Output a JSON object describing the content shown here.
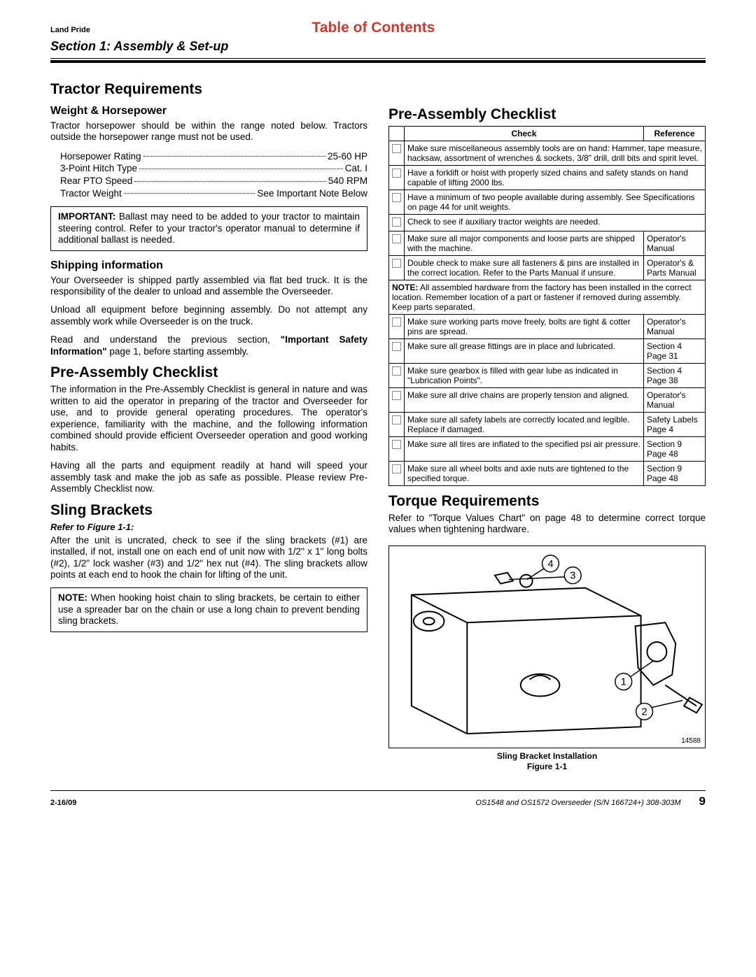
{
  "header": {
    "brand": "Land Pride",
    "toc_title": "Table of Contents",
    "section": "Section 1: Assembly & Set-up"
  },
  "left": {
    "h_tractor": "Tractor Requirements",
    "h_weight": "Weight & Horsepower",
    "p_weight": "Tractor horsepower should be within the range noted below. Tractors outside the horsepower range must not be used.",
    "specs": [
      {
        "label": "Horsepower Rating",
        "value": "25-60 HP"
      },
      {
        "label": "3-Point Hitch Type",
        "value": "Cat. I"
      },
      {
        "label": "Rear PTO Speed",
        "value": "540 RPM"
      },
      {
        "label": "Tractor Weight",
        "value": "See Important Note Below"
      }
    ],
    "important_lead": "IMPORTANT:",
    "important_body": " Ballast may need to be added to your tractor to maintain steering control. Refer to your tractor's operator manual to determine if additional ballast is needed.",
    "h_ship": "Shipping information",
    "p_ship1": "Your Overseeder is shipped partly assembled via flat bed truck. It is the responsibility of the dealer to unload and assemble the Overseeder.",
    "p_ship2": "Unload all equipment before beginning assembly. Do not attempt any assembly work while Overseeder is on the truck.",
    "p_ship3a": "Read and understand the previous section, ",
    "p_ship3b": "\"Important Safety Information\"",
    "p_ship3c": " page 1, before starting assembly.",
    "h_preasm": "Pre-Assembly Checklist",
    "p_preasm1": "The information in the Pre-Assembly Checklist is general in nature and was written to aid the operator in preparing of the tractor and Overseeder for use, and to provide general operating procedures. The operator's experience, familiarity with the machine, and the following information combined should provide efficient Overseeder operation and good working habits.",
    "p_preasm2": "Having all the parts and equipment readily at hand will speed your assembly task and make the job as safe as possible. Please review Pre-Assembly Checklist now.",
    "h_sling": "Sling Brackets",
    "ref_fig": "Refer to Figure 1-1:",
    "p_sling": "After the unit is uncrated, check to see if the sling brackets (#1) are installed, if not, install one on each end of unit now with 1/2\" x 1\" long bolts (#2), 1/2\" lock washer (#3) and 1/2\" hex nut (#4). The sling brackets allow points at each end to hook the chain for lifting of the unit.",
    "note_lead": "NOTE:",
    "note_body": "  When hooking hoist chain to sling brackets, be certain to either use a spreader bar on the chain or use a long chain to prevent bending sling brackets."
  },
  "right": {
    "h_preasm": "Pre-Assembly Checklist",
    "th_check": "Check",
    "th_ref": "Reference",
    "rows": [
      {
        "check": "Make sure miscellaneous assembly tools are on hand: Hammer, tape measure, hacksaw, assortment of wrenches & sockets, 3/8\" drill, drill bits and spirit level.",
        "ref": "",
        "span": true
      },
      {
        "check": "Have a forklift or hoist with properly sized chains and safety stands on hand capable of lifting 2000 lbs.",
        "ref": "",
        "span": true
      },
      {
        "check": "Have a minimum of two people available during assembly. See Specifications on page 44 for unit weights.",
        "ref": "",
        "span": true
      },
      {
        "check": "Check to see if auxiliary tractor weights are needed.",
        "ref": "",
        "span": true
      },
      {
        "check": "Make sure all major components and loose parts are shipped with the machine.",
        "ref": "Operator's Manual"
      },
      {
        "check": "Double check to make sure all fasteners & pins are installed in the correct location. Refer to the Parts Manual if unsure.",
        "ref": "Operator's & Parts Manual"
      },
      {
        "note": true,
        "lead": "NOTE:",
        "check": " All assembled hardware from the factory has been installed in the correct location. Remember location of a part or fastener if removed during assembly. Keep parts separated.",
        "ref": ""
      },
      {
        "check": "Make sure working parts move freely, bolts are tight & cotter pins are spread.",
        "ref": "Operator's Manual"
      },
      {
        "check": "Make sure all grease fittings are in place and lubricated.",
        "ref": "Section 4 Page 31"
      },
      {
        "check": "Make sure gearbox is filled with gear lube as indicated in \"Lubrication Points\".",
        "ref": "Section 4 Page 38"
      },
      {
        "check": "Make sure all drive chains are properly tension and aligned.",
        "ref": "Operator's Manual"
      },
      {
        "check": "Make sure all safety labels are correctly located and legible. Replace if damaged.",
        "ref": "Safety Labels Page 4"
      },
      {
        "check": "Make sure all tires are inflated to the specified psi air pressure.",
        "ref": "Section 9 Page 48"
      },
      {
        "check": "Make sure all wheel bolts and axle nuts are tightened to the specified torque.",
        "ref": "Section 9 Page 48"
      }
    ],
    "h_torque": "Torque Requirements",
    "p_torque": "Refer to \"Torque Values Chart\" on page 48 to determine correct torque values when tightening hardware.",
    "fig_number": "14588",
    "fig_caption1": "Sling Bracket Installation",
    "fig_caption2": "Figure 1-1",
    "callouts": [
      "1",
      "2",
      "3",
      "4"
    ]
  },
  "footer": {
    "date": "2-16/09",
    "doc": "OS1548 and OS1572 Overseeder   (S/N 166724+)   308-303M",
    "page": "9"
  }
}
